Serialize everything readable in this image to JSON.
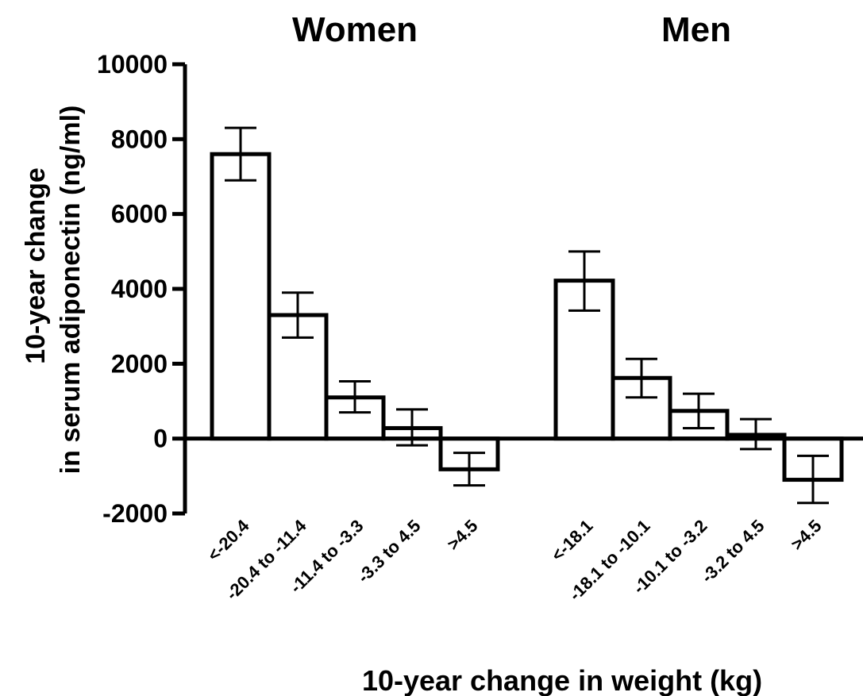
{
  "chart_data": {
    "type": "bar",
    "panels": [
      {
        "title": "Women",
        "categories": [
          "<-20.4",
          "-20.4 to -11.4",
          "-11.4 to -3.3",
          "-3.3 to 4.5",
          ">4.5"
        ],
        "values": [
          7600,
          3300,
          1100,
          280,
          -820
        ],
        "error_low": [
          6900,
          2700,
          700,
          -180,
          -1250
        ],
        "error_high": [
          8300,
          3900,
          1530,
          780,
          -380
        ]
      },
      {
        "title": "Men",
        "categories": [
          "<-18.1",
          "-18.1 to -10.1",
          "-10.1 to -3.2",
          "-3.2 to 4.5",
          ">4.5"
        ],
        "values": [
          4220,
          1620,
          740,
          100,
          -1100
        ],
        "error_low": [
          3420,
          1100,
          280,
          -280,
          -1720
        ],
        "error_high": [
          5000,
          2130,
          1200,
          520,
          -460
        ]
      }
    ],
    "ylabel_lines": [
      "10-year change",
      "in serum adiponectin (ng/ml)"
    ],
    "xlabel": "10-year change in weight (kg)",
    "ylim": [
      -2000,
      10000
    ],
    "yticks": [
      -2000,
      0,
      2000,
      4000,
      6000,
      8000,
      10000
    ],
    "ytick_labels": [
      "-2000",
      "0",
      "2000",
      "4000",
      "6000",
      "8000",
      "10000"
    ],
    "grid": false,
    "error_bars": true,
    "colors": {
      "bar_fill": "#ffffff",
      "bar_stroke": "#000000"
    }
  }
}
